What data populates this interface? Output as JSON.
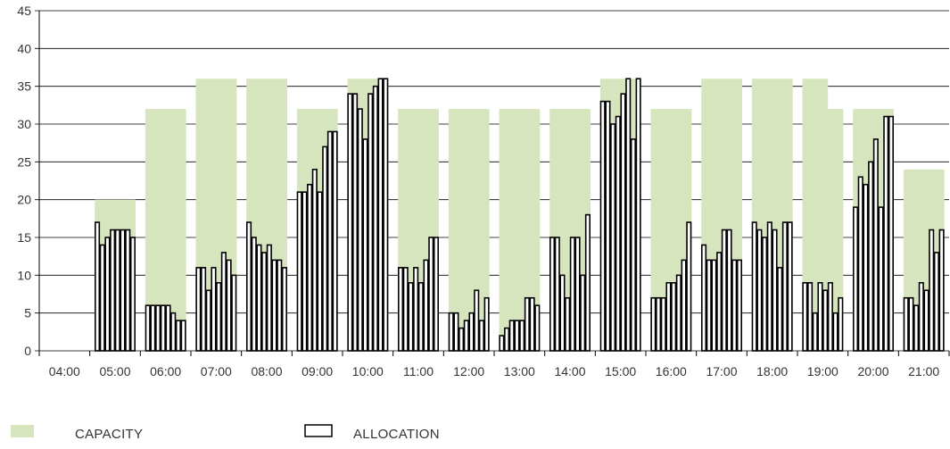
{
  "chart_data": {
    "type": "bar",
    "categories": [
      "04:00",
      "05:00",
      "06:00",
      "07:00",
      "08:00",
      "09:00",
      "10:00",
      "11:00",
      "12:00",
      "13:00",
      "14:00",
      "15:00",
      "16:00",
      "17:00",
      "18:00",
      "19:00",
      "20:00",
      "21:00"
    ],
    "ylim": [
      0,
      45
    ],
    "yticks": [
      0,
      5,
      10,
      15,
      20,
      25,
      30,
      35,
      40,
      45
    ],
    "grid": true,
    "legend_position": "bottom-left",
    "series": [
      {
        "name": "CAPACITY",
        "style": "filled",
        "color": "#d6e5bd",
        "values": [
          [
            0,
            0,
            0,
            0,
            0,
            0,
            0,
            0
          ],
          [
            20,
            20,
            20,
            20,
            20,
            20,
            20,
            20
          ],
          [
            32,
            32,
            32,
            32,
            32,
            32,
            32,
            32
          ],
          [
            36,
            36,
            36,
            36,
            36,
            36,
            36,
            36
          ],
          [
            36,
            36,
            36,
            36,
            36,
            36,
            36,
            36
          ],
          [
            32,
            32,
            32,
            32,
            32,
            32,
            32,
            32
          ],
          [
            36,
            36,
            36,
            36,
            36,
            36,
            36,
            36
          ],
          [
            32,
            32,
            32,
            32,
            32,
            32,
            32,
            32
          ],
          [
            32,
            32,
            32,
            32,
            32,
            32,
            32,
            32
          ],
          [
            32,
            32,
            32,
            32,
            32,
            32,
            32,
            32
          ],
          [
            32,
            32,
            32,
            32,
            32,
            32,
            32,
            32
          ],
          [
            36,
            36,
            36,
            36,
            36,
            36,
            36,
            36
          ],
          [
            32,
            32,
            32,
            32,
            32,
            32,
            32,
            32
          ],
          [
            36,
            36,
            36,
            36,
            36,
            36,
            36,
            36
          ],
          [
            36,
            36,
            36,
            36,
            36,
            36,
            36,
            36
          ],
          [
            36,
            36,
            36,
            36,
            36,
            32,
            32,
            32
          ],
          [
            32,
            32,
            32,
            32,
            32,
            32,
            32,
            32
          ],
          [
            24,
            24,
            24,
            24,
            24,
            24,
            24,
            24
          ]
        ]
      },
      {
        "name": "ALLOCATION",
        "style": "outline",
        "color": "#000000",
        "values": [
          [
            0,
            0,
            0,
            0,
            0,
            0,
            0,
            0
          ],
          [
            17,
            14,
            15,
            16,
            16,
            16,
            16,
            15
          ],
          [
            6,
            6,
            6,
            6,
            6,
            5,
            4,
            4
          ],
          [
            11,
            11,
            8,
            11,
            9,
            13,
            12,
            10
          ],
          [
            17,
            15,
            14,
            13,
            14,
            12,
            12,
            11
          ],
          [
            21,
            21,
            22,
            24,
            21,
            27,
            29,
            29
          ],
          [
            34,
            34,
            32,
            28,
            34,
            35,
            36,
            36
          ],
          [
            11,
            11,
            9,
            11,
            9,
            12,
            15,
            15
          ],
          [
            5,
            5,
            3,
            4,
            5,
            8,
            4,
            7
          ],
          [
            2,
            3,
            4,
            4,
            4,
            7,
            7,
            6
          ],
          [
            15,
            15,
            10,
            7,
            15,
            15,
            10,
            18
          ],
          [
            33,
            33,
            30,
            31,
            34,
            36,
            28,
            36
          ],
          [
            7,
            7,
            7,
            9,
            9,
            10,
            12,
            17
          ],
          [
            14,
            12,
            12,
            13,
            16,
            16,
            12,
            12
          ],
          [
            17,
            16,
            15,
            17,
            16,
            11,
            17,
            17
          ],
          [
            9,
            9,
            5,
            9,
            8,
            9,
            5,
            7
          ],
          [
            19,
            23,
            22,
            25,
            28,
            19,
            31,
            31
          ],
          [
            7,
            7,
            6,
            9,
            8,
            16,
            13,
            16
          ]
        ]
      }
    ]
  }
}
